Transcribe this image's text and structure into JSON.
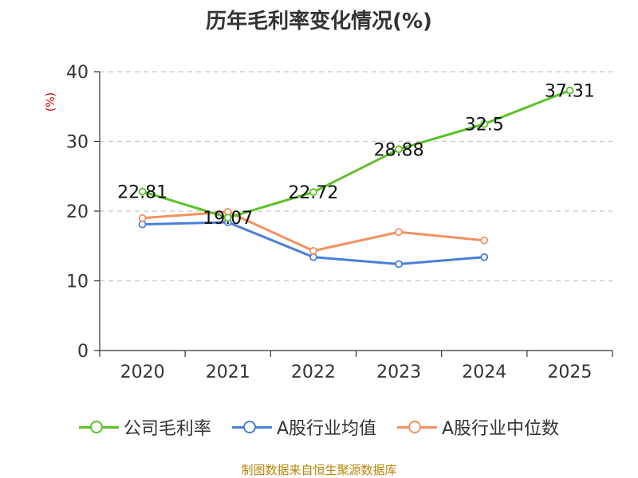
{
  "chart_data": {
    "type": "line",
    "title": "历年毛利率变化情况(%)",
    "ylabel": "(%)",
    "xlabel": "",
    "categories": [
      "2020",
      "2021",
      "2022",
      "2023",
      "2024",
      "2025"
    ],
    "ylim": [
      0,
      40
    ],
    "yticks": [
      0,
      10,
      20,
      30,
      40
    ],
    "grid": true,
    "legend_position": "bottom",
    "series": [
      {
        "name": "公司毛利率",
        "color": "#5cc228",
        "values": [
          22.81,
          19.07,
          22.72,
          28.88,
          32.5,
          37.31
        ],
        "labels": [
          "22.81",
          "19.07",
          "22.72",
          "28.88",
          "32.5",
          "37.31"
        ]
      },
      {
        "name": "A股行业均值",
        "color": "#4a7fd9",
        "values": [
          18.1,
          18.4,
          13.4,
          12.4,
          13.4,
          null
        ]
      },
      {
        "name": "A股行业中位数",
        "color": "#f39160",
        "values": [
          19.0,
          19.9,
          14.3,
          17.0,
          15.8,
          null
        ]
      }
    ],
    "source": "制图数据来自恒生聚源数据库"
  }
}
